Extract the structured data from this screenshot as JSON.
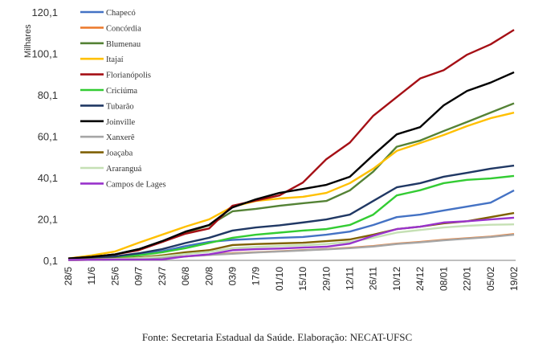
{
  "chart_data": {
    "type": "line",
    "ylabel": "Milhares",
    "ylim": [
      0.1,
      120.1
    ],
    "yticks": [
      "0,1",
      "20,1",
      "40,1",
      "60,1",
      "80,1",
      "100,1",
      "120,1"
    ],
    "ytick_values": [
      0.1,
      20.1,
      40.1,
      60.1,
      80.1,
      100.1,
      120.1
    ],
    "categories": [
      "28/5",
      "11/6",
      "25/6",
      "09/7",
      "23/7",
      "06/8",
      "20/8",
      "03/9",
      "17/9",
      "01/10",
      "15/10",
      "29/10",
      "12/11",
      "26/11",
      "10/12",
      "24/12",
      "08/01",
      "22/01",
      "05/02",
      "19/02"
    ],
    "legend_position": "top-left",
    "grid": false,
    "series": [
      {
        "name": "Chapecó",
        "color": "#4472C4",
        "values": [
          0.5,
          1,
          1.8,
          3,
          4.5,
          7,
          9,
          10,
          10.5,
          11,
          11.4,
          12.5,
          14,
          17.2,
          21,
          22.2,
          24.2,
          26.1,
          28,
          33.9
        ]
      },
      {
        "name": "Concórdia",
        "color": "#ED7D31",
        "values": [
          0.2,
          0.4,
          0.7,
          1,
          1.5,
          2,
          2.8,
          3.5,
          4,
          4.5,
          5,
          5.5,
          6.2,
          7,
          8.2,
          9,
          10,
          10.8,
          11.6,
          12.8
        ]
      },
      {
        "name": "Blumenau",
        "color": "#548235",
        "values": [
          1,
          1.8,
          3,
          5.5,
          9,
          13.5,
          17,
          23.8,
          25,
          26.5,
          27.7,
          28.8,
          33.9,
          43,
          55,
          58,
          62.6,
          67,
          71.5,
          76
        ]
      },
      {
        "name": "Itajaí",
        "color": "#FFC000",
        "values": [
          1,
          2.5,
          4.4,
          8.6,
          12.5,
          16.4,
          19.9,
          26,
          28.8,
          30,
          30.8,
          32.7,
          37.4,
          44.4,
          53,
          56.8,
          60.7,
          65,
          68.8,
          71.5
        ]
      },
      {
        "name": "Florianópolis",
        "color": "#A50F15",
        "values": [
          1,
          1.8,
          3,
          5,
          9,
          13,
          15.5,
          26.5,
          29,
          31.5,
          37.7,
          49,
          57,
          70,
          79,
          88,
          92,
          99.5,
          104.5,
          111.5
        ]
      },
      {
        "name": "Criciúma",
        "color": "#33CC33",
        "values": [
          0.5,
          1,
          1.6,
          2.5,
          4,
          6,
          8.5,
          11,
          12.5,
          13.5,
          14.5,
          15.2,
          17.2,
          22.2,
          31.5,
          34,
          37.4,
          39,
          39.7,
          40.9
        ]
      },
      {
        "name": "Tubarão",
        "color": "#203864",
        "values": [
          0.6,
          1.2,
          2,
          3.5,
          5.5,
          8.5,
          11,
          14.5,
          16,
          17,
          18.4,
          19.9,
          22.2,
          28.8,
          35.4,
          37.4,
          40.5,
          42.4,
          44.4,
          45.9
        ]
      },
      {
        "name": "Joinville",
        "color": "#000000",
        "values": [
          1,
          1.8,
          3,
          5.5,
          9.4,
          14,
          17.2,
          25.7,
          29.6,
          32.7,
          34.6,
          36.6,
          40.5,
          51,
          61,
          64.5,
          75,
          82,
          86,
          91
        ]
      },
      {
        "name": "Xanxerê",
        "color": "#A6A6A6",
        "values": [
          0.2,
          0.4,
          0.6,
          0.9,
          1.4,
          2,
          2.7,
          3.3,
          3.9,
          4.4,
          4.9,
          5.4,
          6,
          6.8,
          8,
          8.8,
          9.8,
          10.6,
          11.4,
          12.5
        ]
      },
      {
        "name": "Joaçaba",
        "color": "#7F6000",
        "values": [
          0.3,
          0.6,
          1,
          1.5,
          2.5,
          4,
          5,
          7.5,
          8,
          8.3,
          8.6,
          9.4,
          10.2,
          12.5,
          15.2,
          16.4,
          18,
          19,
          21,
          23
        ]
      },
      {
        "name": "Araranguá",
        "color": "#C5E0B4",
        "values": [
          0.3,
          0.5,
          0.8,
          1.2,
          2,
          3.2,
          4.2,
          6,
          6.6,
          7,
          7.4,
          8,
          9,
          11,
          13.5,
          14.8,
          16,
          16.8,
          17.3,
          17.5
        ]
      },
      {
        "name": "Campos de Lages",
        "color": "#9933CC",
        "values": [
          0.3,
          0.4,
          0.5,
          0.5,
          0.5,
          2,
          3,
          5,
          5.5,
          5.8,
          6.3,
          6.7,
          8.2,
          12,
          15.2,
          16.4,
          18.4,
          19,
          19.9,
          20.7
        ]
      }
    ]
  },
  "caption": "Fonte: Secretaria Estadual da Saúde. Elaboração: NECAT-UFSC"
}
